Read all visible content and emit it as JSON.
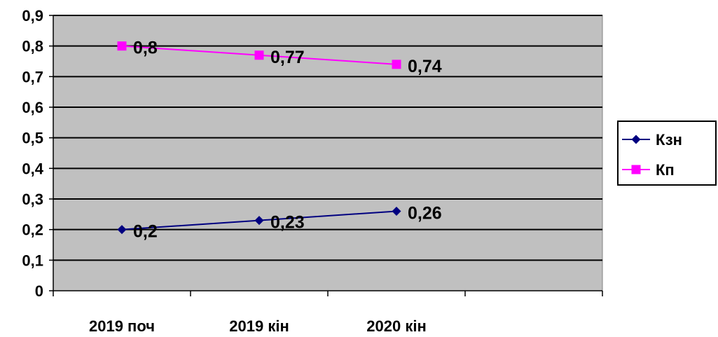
{
  "chart_data": {
    "type": "line",
    "title": "",
    "xlabel": "",
    "ylabel": "",
    "categories": [
      "2019 поч",
      "2019 кін",
      "2020 кін"
    ],
    "category_slots": 4,
    "ylim": [
      0,
      0.9
    ],
    "y_ticks": [
      0,
      0.1,
      0.2,
      0.3,
      0.4,
      0.5,
      0.6,
      0.7,
      0.8,
      0.9
    ],
    "y_tick_labels": [
      "0",
      "0,1",
      "0,2",
      "0,3",
      "0,4",
      "0,5",
      "0,6",
      "0,7",
      "0,8",
      "0,9"
    ],
    "grid": true,
    "plot_background": "#c0c0c0",
    "gridline_color": "#000000",
    "legend_position": "right",
    "series": [
      {
        "name": "Кзн",
        "values": [
          0.2,
          0.23,
          0.26
        ],
        "labels": [
          "0,2",
          "0,23",
          "0,26"
        ],
        "color": "#000080",
        "marker": "diamond"
      },
      {
        "name": "Кп",
        "values": [
          0.8,
          0.77,
          0.74
        ],
        "labels": [
          "0,8",
          "0,77",
          "0,74"
        ],
        "color": "#ff00ff",
        "marker": "square"
      }
    ]
  }
}
